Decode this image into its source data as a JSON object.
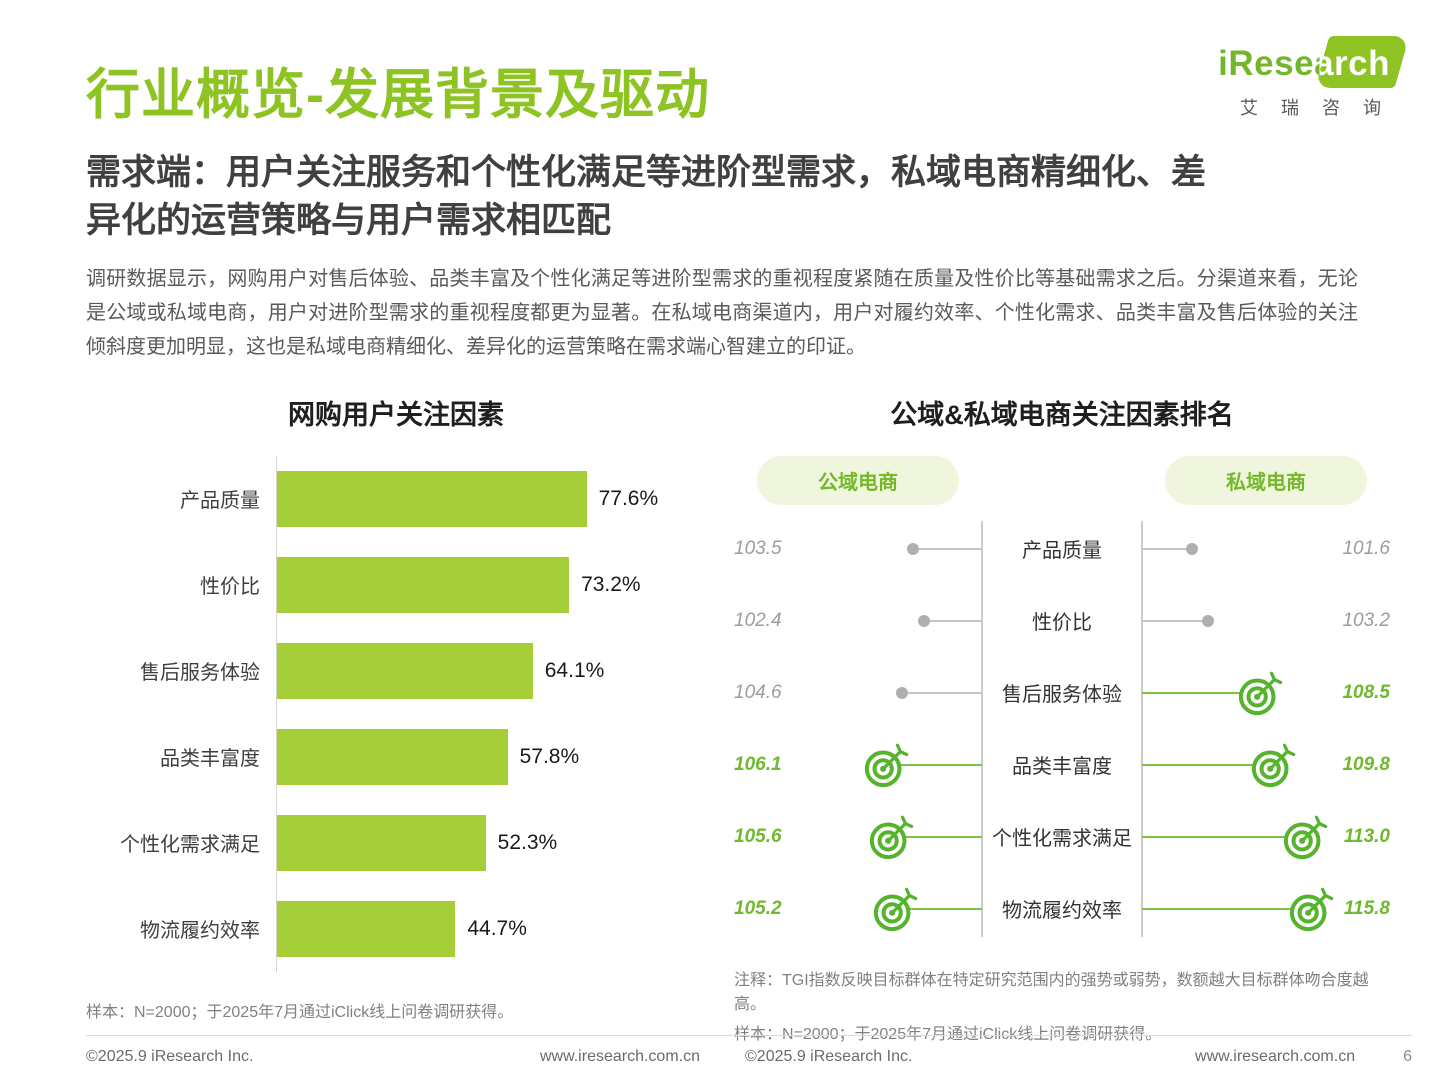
{
  "page": {
    "title": "行业概览-发展背景及驱动",
    "subtitle": "需求端：用户关注服务和个性化满足等进阶型需求，私域电商精细化、差异化的运营策略与用户需求相匹配",
    "body": "调研数据显示，网购用户对售后体验、品类丰富及个性化满足等进阶型需求的重视程度紧随在质量及性价比等基础需求之后。分渠道来看，无论是公域或私域电商，用户对进阶型需求的重视程度都更为显著。在私域电商渠道内，用户对履约效率、个性化需求、品类丰富及售后体验的关注倾斜度更加明显，这也是私域电商精细化、差异化的运营策略在需求端心智建立的印证。"
  },
  "logo": {
    "brand": "iResearch",
    "brand_cn": "艾 瑞 咨 询"
  },
  "colors": {
    "title_green": "#8DC322",
    "bar_green": "#A5CE39",
    "target_green": "#56B32D",
    "pill_bg": "#EFF6DD",
    "pill_text": "#76B82A",
    "dim_gray": "#AFAFAF",
    "note_gray": "#808080"
  },
  "chart_data": [
    {
      "type": "bar",
      "orientation": "horizontal",
      "title": "网购用户关注因素",
      "categories": [
        "产品质量",
        "性价比",
        "售后服务体验",
        "品类丰富度",
        "个性化需求满足",
        "物流履约效率"
      ],
      "values": [
        77.6,
        73.2,
        64.1,
        57.8,
        52.3,
        44.7
      ],
      "value_labels": [
        "77.6%",
        "73.2%",
        "64.1%",
        "57.8%",
        "52.3%",
        "44.7%"
      ],
      "unit": "%",
      "xlim": [
        0,
        100
      ],
      "grid": false,
      "note": "样本：N=2000；于2025年7月通过iClick线上问卷调研获得。"
    },
    {
      "type": "scatter",
      "subtype": "dot-ranking-tgi",
      "title": "公域&私域电商关注因素排名",
      "categories": [
        "产品质量",
        "性价比",
        "售后服务体验",
        "品类丰富度",
        "个性化需求满足",
        "物流履约效率"
      ],
      "series": [
        {
          "name": "公域电商",
          "values": [
            103.5,
            102.4,
            104.6,
            106.1,
            105.6,
            105.2
          ],
          "display": [
            "103.5",
            "102.4",
            "104.6",
            "106.1",
            "105.6",
            "105.2"
          ],
          "highlight": [
            false,
            false,
            false,
            true,
            true,
            true
          ]
        },
        {
          "name": "私域电商",
          "values": [
            101.6,
            103.2,
            108.5,
            109.8,
            113.0,
            115.8
          ],
          "display": [
            "101.6",
            "103.2",
            "108.5",
            "109.8",
            "113.0",
            "115.8"
          ],
          "highlight": [
            false,
            false,
            true,
            true,
            true,
            true
          ]
        }
      ],
      "legend_note": "注释：TGI指数反映目标群体在特定研究范围内的强势或弱势，数额越大目标群体吻合度越高。",
      "sample_note": "样本：N=2000；于2025年7月通过iClick线上问卷调研获得。"
    }
  ],
  "footer": {
    "left_copyright": "©2025.9 iResearch Inc.",
    "left_url": "www.iresearch.com.cn",
    "right_copyright": "©2025.9 iResearch Inc.",
    "right_url": "www.iresearch.com.cn",
    "page_number": "6"
  }
}
